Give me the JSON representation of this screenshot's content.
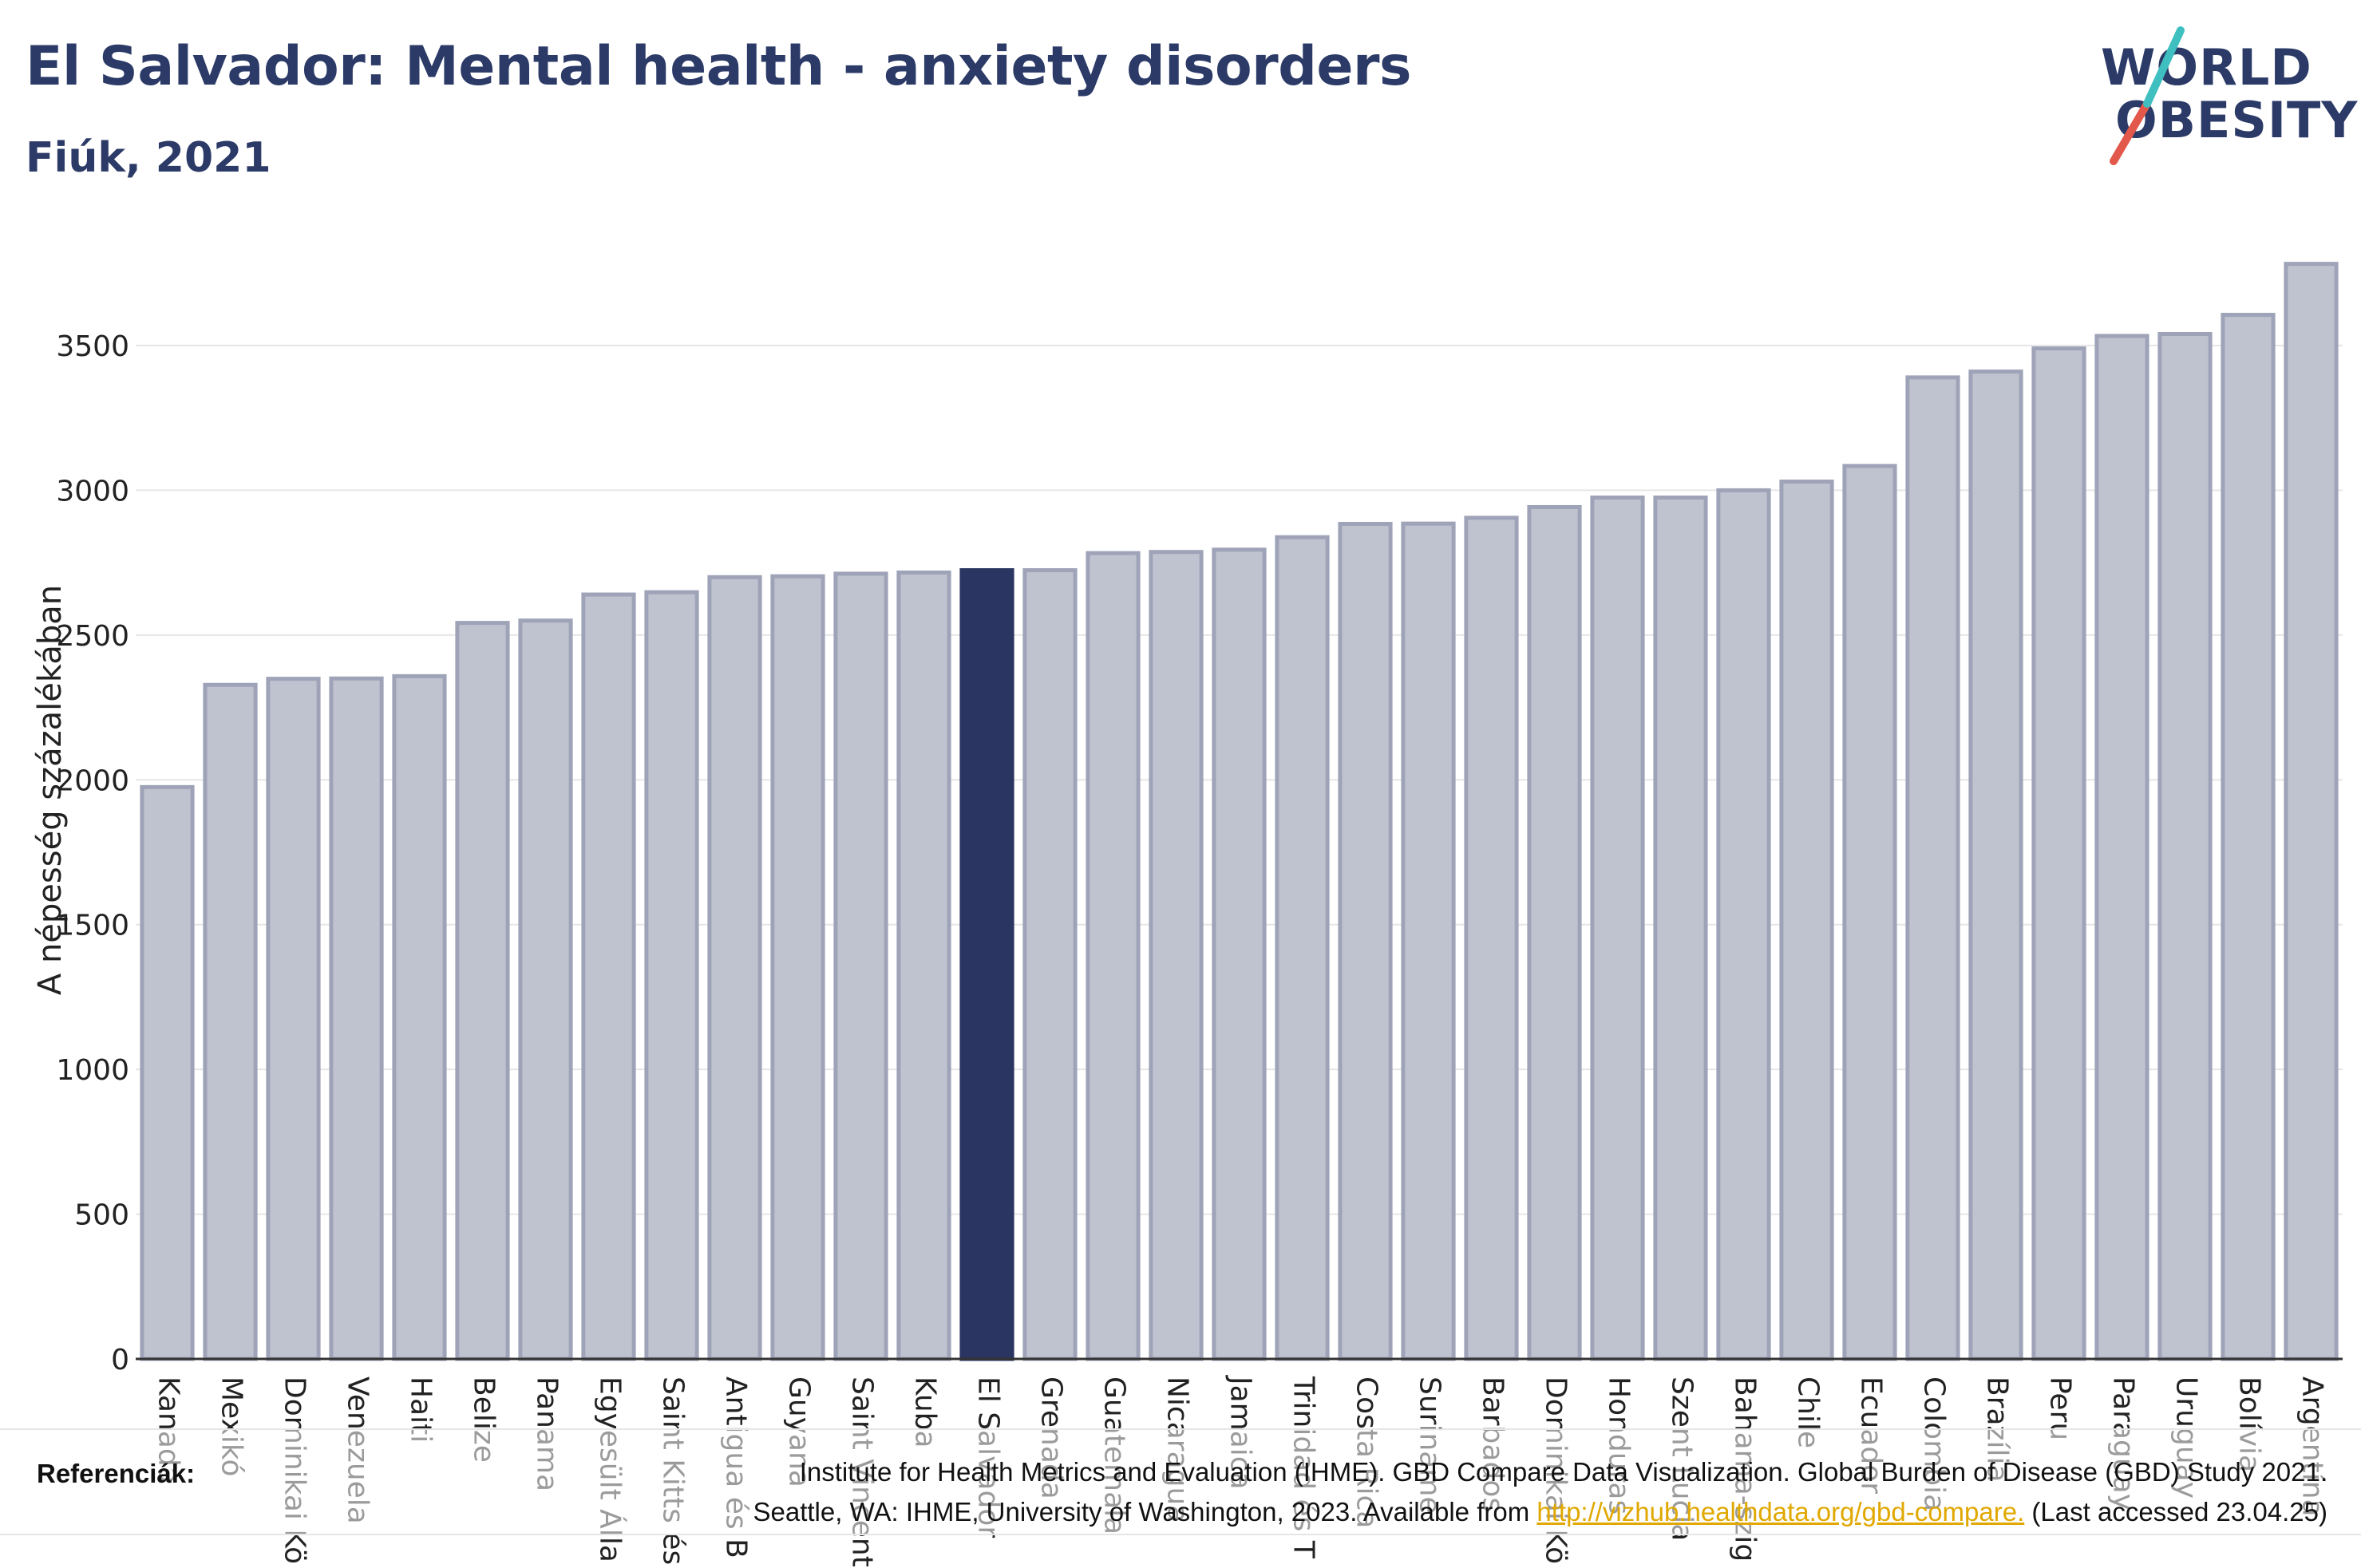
{
  "header": {
    "title": "El Salvador: Mental health - anxiety disorders",
    "subtitle": "Fiúk, 2021"
  },
  "logo": {
    "line1": "WORLD",
    "line2": "OBESITY",
    "accent_colors": [
      "#e2594b",
      "#3fbfbf"
    ]
  },
  "colors": {
    "bar_default": "#bfc2cf",
    "bar_border": "#9ea3b8",
    "bar_highlight": "#2b3561",
    "text_dark": "#2b3a67"
  },
  "chart_data": {
    "type": "bar",
    "ylabel": "A népesség százalékában",
    "xlabel": "",
    "ylim": [
      0,
      3900
    ],
    "yticks": [
      0,
      500,
      1000,
      1500,
      2000,
      2500,
      3000,
      3500
    ],
    "grid": true,
    "highlight": "El Salvador",
    "categories": [
      "Kanada",
      "Mexikó",
      "Dominikai Kö",
      "Venezuela",
      "Haiti",
      "Belize",
      "Panama",
      "Egyesült Álla",
      "Saint Kitts és",
      "Antigua és B",
      "Guyana",
      "Saint Vincent",
      "Kuba",
      "El Salvador",
      "Grenada",
      "Guatemala",
      "Nicaragua",
      "Jamaica",
      "Trinidad és T",
      "Costa Rica",
      "Suriname",
      "Barbados",
      "Dominikai Kö",
      "Honduras",
      "Szent Lucia",
      "Bahama-szig",
      "Chile",
      "Ecuador",
      "Colombia",
      "Brazília",
      "Peru",
      "Paraguay",
      "Uruguay",
      "Bolívia",
      "Argentína"
    ],
    "values": [
      1975,
      2328,
      2349,
      2350,
      2358,
      2542,
      2550,
      2640,
      2648,
      2700,
      2703,
      2712,
      2716,
      2724,
      2724,
      2783,
      2787,
      2795,
      2838,
      2884,
      2885,
      2905,
      2942,
      2975,
      2975,
      3000,
      3030,
      3084,
      3390,
      3410,
      3490,
      3533,
      3540,
      3606,
      3782
    ]
  },
  "footer": {
    "label": "Referenciák:",
    "line1": "Institute for Health Metrics and Evaluation (IHME). GBD Compare Data Visualization. Global Burden of Disease (GBD) Study 2021.",
    "line2_prefix": "Seattle, WA: IHME, University of Washington, 2023. Available from ",
    "link": "http://vizhub.healthdata.org/gbd-compare.",
    "line2_suffix": " (Last accessed 23.04.25)"
  }
}
